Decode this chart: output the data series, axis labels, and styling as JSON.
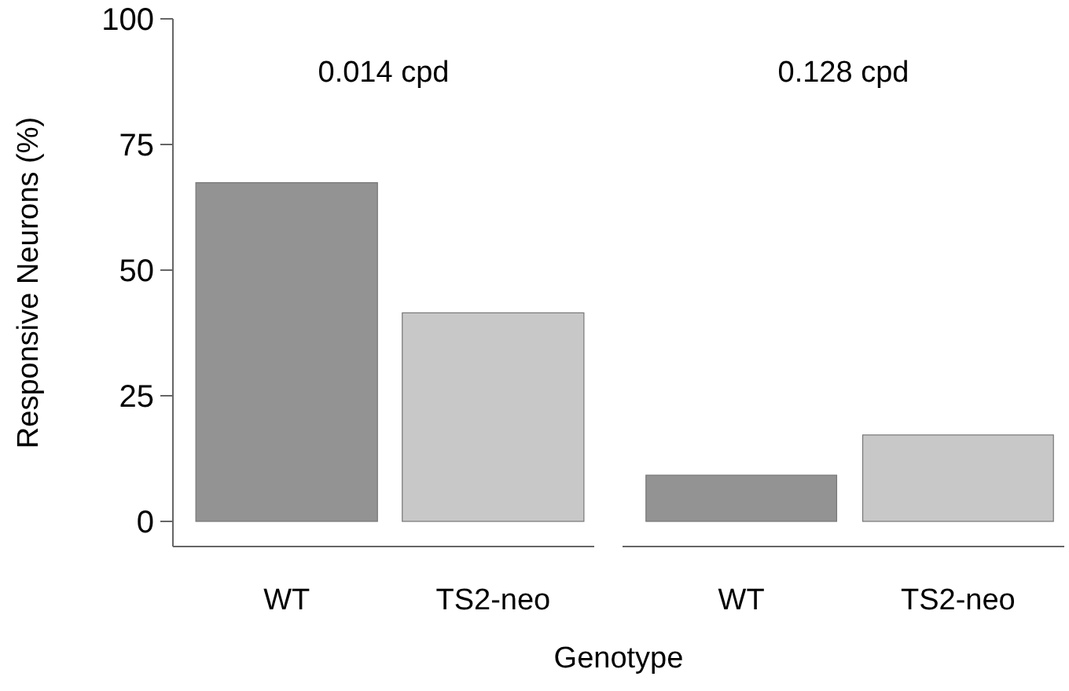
{
  "chart_data": [
    {
      "type": "bar",
      "title": "0.014 cpd",
      "ylabel": "Responsive Neurons (%)",
      "xlabel": "Genotype",
      "categories": [
        "WT",
        "TS2-neo"
      ],
      "values": [
        67.4,
        41.5
      ],
      "colors": [
        "#939393",
        "#c8c8c8"
      ],
      "ylim": [
        -5,
        100
      ],
      "yticks": [
        0,
        25,
        50,
        75,
        100
      ]
    },
    {
      "type": "bar",
      "title": "0.128 cpd",
      "categories": [
        "WT",
        "TS2-neo"
      ],
      "values": [
        9.2,
        17.2
      ],
      "colors": [
        "#939393",
        "#c8c8c8"
      ],
      "ylim": [
        -5,
        100
      ],
      "yticks": [
        0,
        25,
        50,
        75,
        100
      ],
      "tick_labels": "x"
    }
  ]
}
